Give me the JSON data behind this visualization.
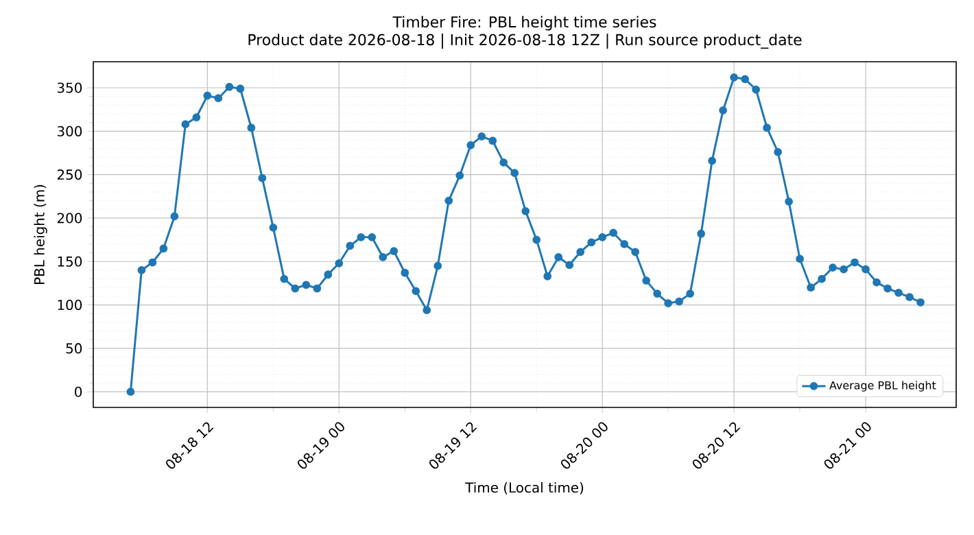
{
  "chart_data": {
    "type": "line",
    "title": "Timber Fire: PBL height time series",
    "subtitle": "Product date 2026-08-18 | Init 2026-08-18 12Z | Run source product_date",
    "xlabel": "Time (Local time)",
    "ylabel": "PBL height (m)",
    "x": [
      "2026-08-18T05:00",
      "2026-08-18T06:00",
      "2026-08-18T07:00",
      "2026-08-18T08:00",
      "2026-08-18T09:00",
      "2026-08-18T10:00",
      "2026-08-18T11:00",
      "2026-08-18T12:00",
      "2026-08-18T13:00",
      "2026-08-18T14:00",
      "2026-08-18T15:00",
      "2026-08-18T16:00",
      "2026-08-18T17:00",
      "2026-08-18T18:00",
      "2026-08-18T19:00",
      "2026-08-18T20:00",
      "2026-08-18T21:00",
      "2026-08-18T22:00",
      "2026-08-18T23:00",
      "2026-08-19T00:00",
      "2026-08-19T01:00",
      "2026-08-19T02:00",
      "2026-08-19T03:00",
      "2026-08-19T04:00",
      "2026-08-19T05:00",
      "2026-08-19T06:00",
      "2026-08-19T07:00",
      "2026-08-19T08:00",
      "2026-08-19T09:00",
      "2026-08-19T10:00",
      "2026-08-19T11:00",
      "2026-08-19T12:00",
      "2026-08-19T13:00",
      "2026-08-19T14:00",
      "2026-08-19T15:00",
      "2026-08-19T16:00",
      "2026-08-19T17:00",
      "2026-08-19T18:00",
      "2026-08-19T19:00",
      "2026-08-19T20:00",
      "2026-08-19T21:00",
      "2026-08-19T22:00",
      "2026-08-19T23:00",
      "2026-08-20T00:00",
      "2026-08-20T01:00",
      "2026-08-20T02:00",
      "2026-08-20T03:00",
      "2026-08-20T04:00",
      "2026-08-20T05:00",
      "2026-08-20T06:00",
      "2026-08-20T07:00",
      "2026-08-20T08:00",
      "2026-08-20T09:00",
      "2026-08-20T10:00",
      "2026-08-20T11:00",
      "2026-08-20T12:00",
      "2026-08-20T13:00",
      "2026-08-20T14:00",
      "2026-08-20T15:00",
      "2026-08-20T16:00",
      "2026-08-20T17:00",
      "2026-08-20T18:00",
      "2026-08-20T19:00",
      "2026-08-20T20:00",
      "2026-08-20T21:00",
      "2026-08-20T22:00",
      "2026-08-20T23:00",
      "2026-08-21T00:00",
      "2026-08-21T01:00",
      "2026-08-21T02:00",
      "2026-08-21T03:00",
      "2026-08-21T04:00",
      "2026-08-21T05:00"
    ],
    "series": [
      {
        "name": "Average PBL height",
        "color": "#1f77b4",
        "values": [
          0,
          140,
          149,
          165,
          202,
          308,
          316,
          341,
          338,
          351,
          349,
          304,
          246,
          189,
          130,
          119,
          123,
          119,
          135,
          148,
          168,
          178,
          178,
          155,
          162,
          137,
          116,
          94,
          145,
          220,
          249,
          284,
          294,
          289,
          264,
          252,
          208,
          175,
          133,
          155,
          146,
          161,
          172,
          178,
          183,
          170,
          161,
          128,
          113,
          102,
          104,
          113,
          182,
          266,
          324,
          362,
          360,
          348,
          304,
          276,
          219,
          153,
          120,
          130,
          143,
          141,
          149,
          141,
          126,
          119,
          114,
          109,
          103
        ]
      }
    ],
    "xlim": [
      "2026-08-18T01:36",
      "2026-08-21T08:15"
    ],
    "xticks": [
      {
        "value": "2026-08-18T12:00",
        "label": "08-18 12"
      },
      {
        "value": "2026-08-19T00:00",
        "label": "08-19 00"
      },
      {
        "value": "2026-08-19T12:00",
        "label": "08-19 12"
      },
      {
        "value": "2026-08-20T00:00",
        "label": "08-20 00"
      },
      {
        "value": "2026-08-20T12:00",
        "label": "08-20 12"
      },
      {
        "value": "2026-08-21T00:00",
        "label": "08-21 00"
      }
    ],
    "ylim": [
      -18,
      380
    ],
    "yticks": [
      0,
      50,
      100,
      150,
      200,
      250,
      300,
      350
    ],
    "grid": true,
    "legend": "bottom right",
    "marker": "circle",
    "line_style": "solid"
  }
}
